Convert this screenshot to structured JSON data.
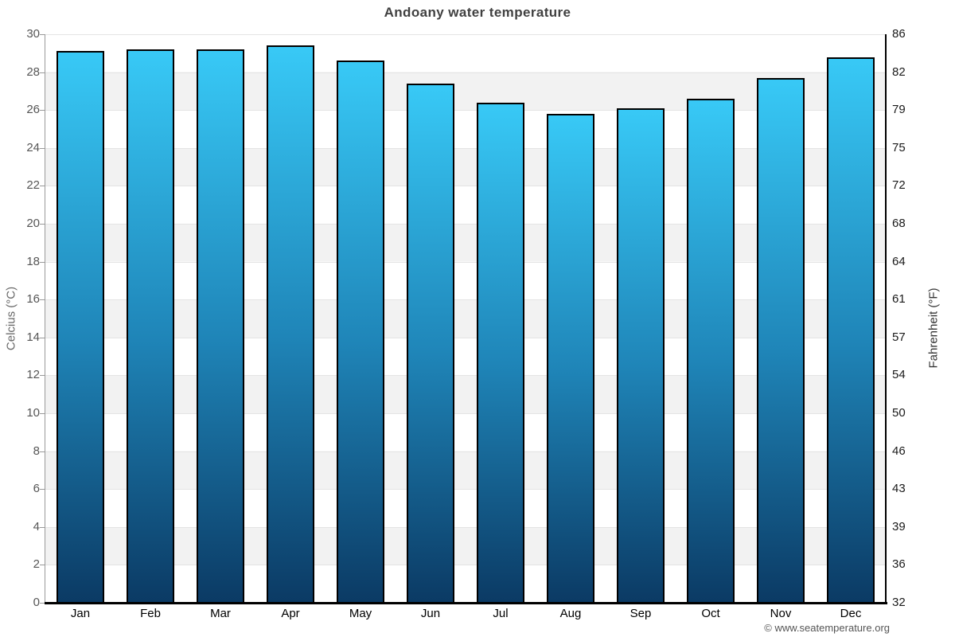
{
  "title": "Andoany water temperature",
  "footer": "© www.seatemperature.org",
  "chart_data": {
    "type": "bar",
    "title": "Andoany water temperature",
    "categories": [
      "Jan",
      "Feb",
      "Mar",
      "Apr",
      "May",
      "Jun",
      "Jul",
      "Aug",
      "Sep",
      "Oct",
      "Nov",
      "Dec"
    ],
    "values": [
      29.1,
      29.2,
      29.2,
      29.4,
      28.6,
      27.4,
      26.4,
      25.8,
      26.1,
      26.6,
      27.7,
      28.8
    ],
    "xlabel": "",
    "ylabel_left": "Celcius (°C)",
    "ylabel_right": "Fahrenheit (°F)",
    "ylim": [
      0,
      30
    ],
    "left_ticks": [
      30,
      28,
      26,
      24,
      22,
      20,
      18,
      16,
      14,
      12,
      10,
      8,
      6,
      4,
      2,
      0
    ],
    "right_ticks": [
      86,
      82,
      79,
      75,
      72,
      68,
      64,
      61,
      57,
      54,
      50,
      46,
      43,
      39,
      36,
      32
    ],
    "legend": "none",
    "grid": "alternating horizontal bands every 2°C",
    "band_color": "#f2f2f2",
    "bar_color_top": "#38c9f6",
    "bar_color_mid": "#1f85b8",
    "bar_color_bottom": "#0b3a64",
    "bar_border_color": "#000000",
    "title_color": "#404040"
  }
}
